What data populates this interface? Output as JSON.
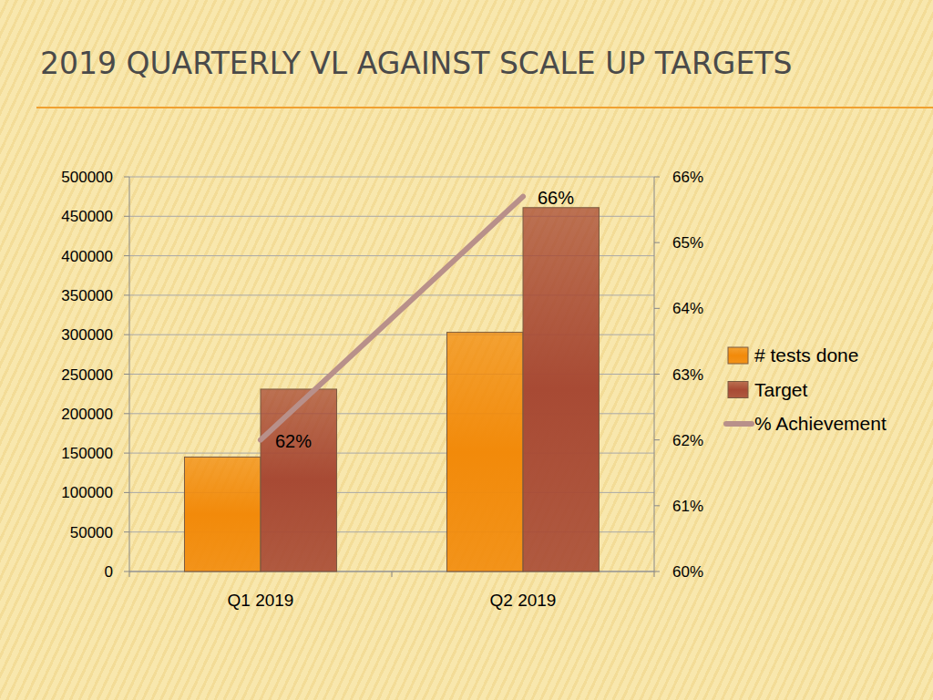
{
  "chart_data": {
    "type": "bar",
    "title": "2019 QUARTERLY VL AGAINST  SCALE UP TARGETS",
    "categories": [
      "Q1 2019",
      "Q2 2019"
    ],
    "series": [
      {
        "name": "# tests done",
        "color": "#f28a0a",
        "values": [
          145000,
          303000
        ]
      },
      {
        "name": "Target",
        "color": "#a84a34",
        "values": [
          231000,
          461000
        ]
      },
      {
        "name": "% Achievement",
        "type": "line",
        "axis": "y2",
        "color": "#b8908a",
        "values": [
          62,
          65.7
        ],
        "value_labels": [
          "62%",
          "66%"
        ],
        "data_labels": true
      }
    ],
    "ylim": [
      0,
      500000
    ],
    "yticks": [
      0,
      50000,
      100000,
      150000,
      200000,
      250000,
      300000,
      350000,
      400000,
      450000,
      500000
    ],
    "y2lim": [
      60,
      66
    ],
    "y2ticks": [
      {
        "value": 60,
        "label": "60%"
      },
      {
        "value": 61,
        "label": "61%"
      },
      {
        "value": 62,
        "label": "62%"
      },
      {
        "value": 63,
        "label": "63%"
      },
      {
        "value": 64,
        "label": "64%"
      },
      {
        "value": 65,
        "label": "65%"
      },
      {
        "value": 66,
        "label": "66%"
      }
    ],
    "grid": true,
    "legend": "right"
  }
}
